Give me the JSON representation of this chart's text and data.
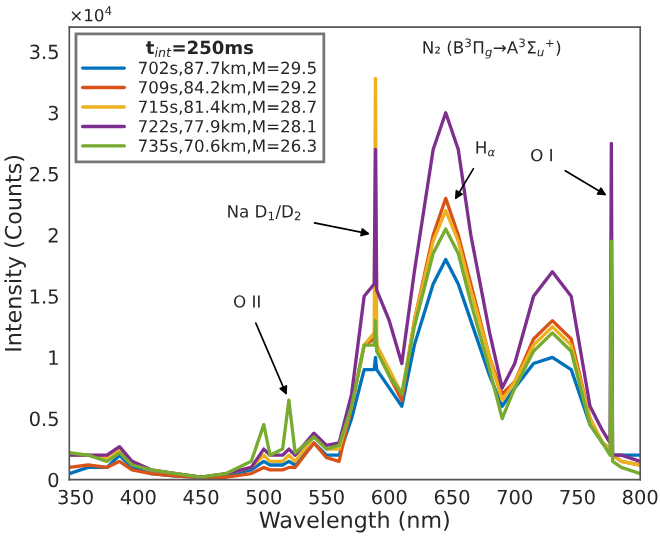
{
  "chart_data": {
    "type": "line",
    "xlabel": "Wavelength (nm)",
    "ylabel": "Intensity (Counts)",
    "legend_title": "t$_{int}$=250ms",
    "legend": "top left",
    "grid": false,
    "x": [
      345,
      360,
      375,
      385,
      395,
      410,
      430,
      450,
      470,
      490,
      500,
      505,
      515,
      520,
      525,
      540,
      550,
      560,
      570,
      580,
      588,
      589,
      590,
      600,
      610,
      620,
      635,
      645,
      655,
      665,
      680,
      690,
      700,
      715,
      730,
      745,
      760,
      770,
      776,
      777,
      778,
      785,
      800
    ],
    "xlim": [
      345,
      800
    ],
    "xticks": [
      350,
      400,
      450,
      500,
      550,
      600,
      650,
      700,
      750,
      800
    ],
    "ylim": [
      0,
      3.7
    ],
    "yticks": [
      0,
      0.5,
      1,
      1.5,
      2,
      2.5,
      3,
      3.5
    ],
    "series": [
      {
        "name": "702s,87.7km,M=29.5",
        "color": "#0072bd",
        "values": [
          0.05,
          0.1,
          0.1,
          0.2,
          0.1,
          0.05,
          0.03,
          0.02,
          0.03,
          0.08,
          0.15,
          0.12,
          0.12,
          0.15,
          0.12,
          0.3,
          0.2,
          0.2,
          0.5,
          0.9,
          0.9,
          1.0,
          0.9,
          0.75,
          0.6,
          1.1,
          1.6,
          1.8,
          1.6,
          1.3,
          0.85,
          0.6,
          0.75,
          0.95,
          1.0,
          0.9,
          0.45,
          0.3,
          0.25,
          0.3,
          0.2,
          0.2,
          0.2
        ]
      },
      {
        "name": "709s,84.2km,M=29.2",
        "color": "#d95319",
        "values": [
          0.1,
          0.12,
          0.1,
          0.15,
          0.08,
          0.05,
          0.03,
          0.02,
          0.02,
          0.05,
          0.1,
          0.08,
          0.08,
          0.1,
          0.1,
          0.3,
          0.18,
          0.15,
          0.6,
          1.1,
          1.15,
          1.4,
          1.1,
          0.85,
          0.65,
          1.3,
          2.0,
          2.3,
          2.0,
          1.6,
          1.0,
          0.7,
          0.8,
          1.15,
          1.3,
          1.15,
          0.5,
          0.3,
          0.25,
          0.3,
          0.2,
          0.15,
          0.12
        ]
      },
      {
        "name": "715s,81.4km,M=28.7",
        "color": "#edb120",
        "values": [
          0.2,
          0.2,
          0.18,
          0.25,
          0.15,
          0.08,
          0.05,
          0.02,
          0.05,
          0.1,
          0.2,
          0.15,
          0.15,
          0.2,
          0.15,
          0.35,
          0.25,
          0.25,
          0.6,
          1.1,
          1.2,
          3.28,
          1.1,
          0.9,
          0.7,
          1.3,
          1.95,
          2.2,
          1.95,
          1.55,
          1.0,
          0.65,
          0.8,
          1.1,
          1.25,
          1.1,
          0.5,
          0.3,
          0.25,
          0.3,
          0.2,
          0.15,
          0.12
        ]
      },
      {
        "name": "722s,77.9km,M=28.1",
        "color": "#7e2f8e",
        "values": [
          0.2,
          0.2,
          0.2,
          0.27,
          0.15,
          0.08,
          0.05,
          0.02,
          0.05,
          0.1,
          0.25,
          0.2,
          0.2,
          0.25,
          0.2,
          0.38,
          0.28,
          0.3,
          0.7,
          1.5,
          1.6,
          2.7,
          1.55,
          1.3,
          0.95,
          1.7,
          2.7,
          3.0,
          2.7,
          2.0,
          1.2,
          0.75,
          0.95,
          1.5,
          1.7,
          1.5,
          0.6,
          0.4,
          0.3,
          2.75,
          0.2,
          0.2,
          0.15
        ]
      },
      {
        "name": "735s,70.6km,M=26.3",
        "color": "#77ac30",
        "values": [
          0.22,
          0.2,
          0.15,
          0.22,
          0.12,
          0.08,
          0.05,
          0.02,
          0.05,
          0.15,
          0.45,
          0.2,
          0.25,
          0.65,
          0.22,
          0.35,
          0.25,
          0.28,
          0.6,
          1.1,
          1.1,
          1.3,
          1.05,
          0.85,
          0.7,
          1.25,
          1.85,
          2.05,
          1.85,
          1.45,
          0.9,
          0.5,
          0.75,
          1.05,
          1.2,
          1.05,
          0.45,
          0.3,
          0.2,
          1.95,
          0.15,
          0.1,
          0.05
        ]
      }
    ],
    "annotations": [
      "×10$^{4}$",
      "N₂ (B$^{3}$Π$_{g}$→A$^{3}$Σ$_{u}$$^{+}$)",
      {
        "text": "H$_{α}$",
        "x": 650,
        "y": 2.25
      },
      {
        "text": "O I",
        "x": 777,
        "y": 2.3
      },
      {
        "text": "Na D$_{1}$/D$_{2}$",
        "x": 589,
        "y": 2.0
      },
      {
        "text": "O II",
        "x": 520,
        "y": 0.65
      }
    ]
  }
}
